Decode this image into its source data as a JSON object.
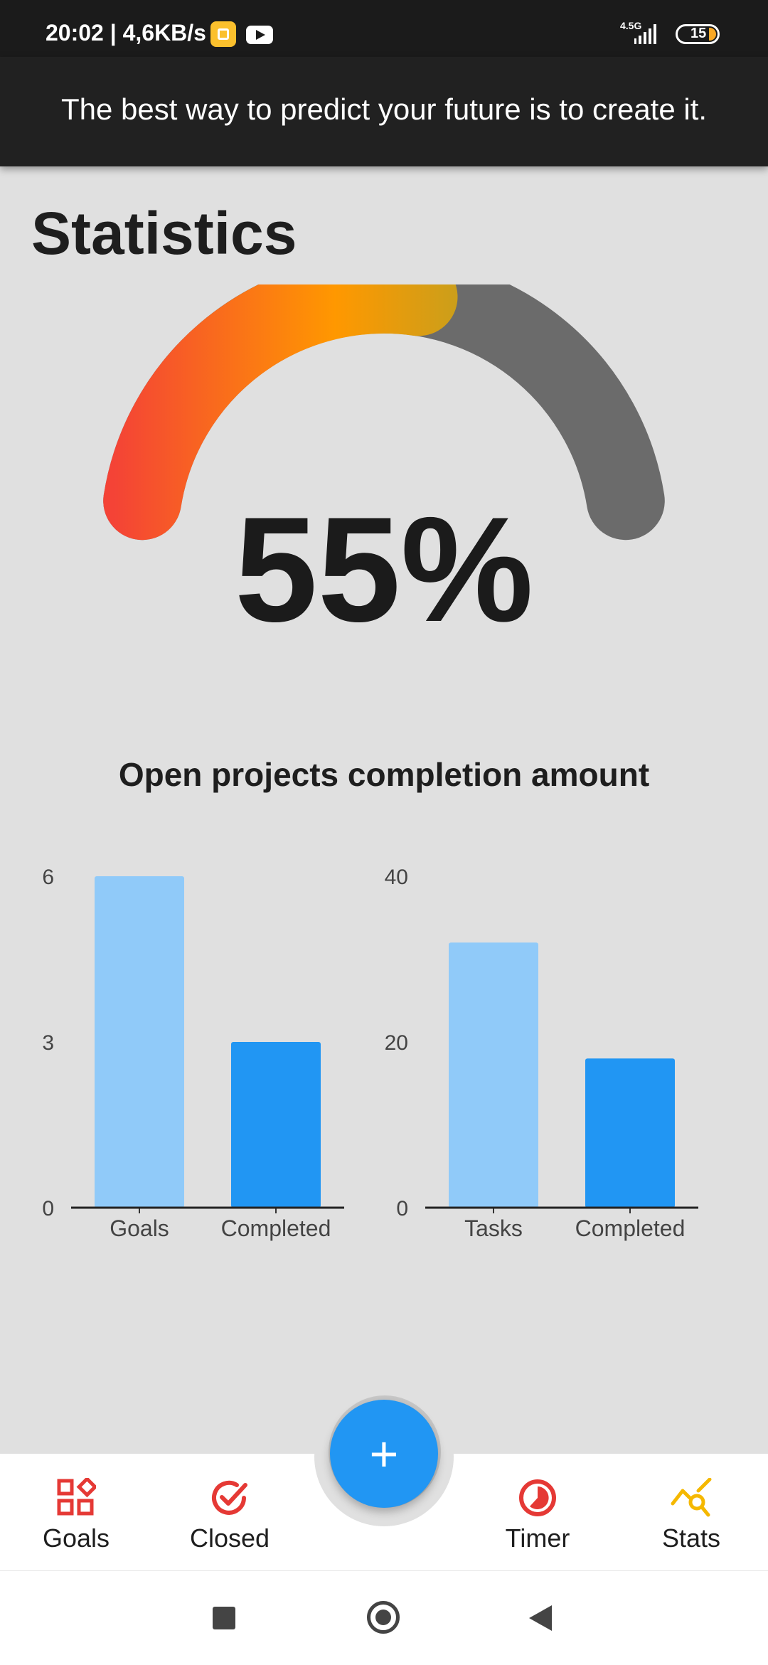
{
  "status_bar": {
    "time_speed": "20:02 | 4,6KB/s",
    "network": "4.5G",
    "battery": "15",
    "icons": [
      "notification-app-icon",
      "youtube-icon",
      "signal-icon",
      "battery-icon"
    ]
  },
  "header": {
    "quote": "The best way to predict your future is to create it."
  },
  "page": {
    "title": "Statistics"
  },
  "gauge": {
    "value_text": "55%",
    "fraction": 0.55,
    "colors": {
      "start": "#f44336",
      "mid": "#ff9800",
      "end": "#c0a020",
      "track": "#6b6b6b"
    }
  },
  "chart_section": {
    "title": "Open projects completion amount"
  },
  "chart_data": [
    {
      "type": "bar",
      "categories": [
        "Goals",
        "Completed"
      ],
      "values": [
        6,
        3
      ],
      "ylim": [
        0,
        6
      ],
      "yticks": [
        0,
        3,
        6
      ],
      "colors": [
        "#90caf9",
        "#2196f3"
      ],
      "grid": false
    },
    {
      "type": "bar",
      "categories": [
        "Tasks",
        "Completed"
      ],
      "values": [
        32,
        18
      ],
      "ylim": [
        0,
        40
      ],
      "yticks": [
        0,
        20,
        40
      ],
      "colors": [
        "#90caf9",
        "#2196f3"
      ],
      "grid": false
    }
  ],
  "bottom_nav": {
    "items": [
      {
        "label": "Goals",
        "icon": "goals-icon",
        "color": "#e53935"
      },
      {
        "label": "Closed",
        "icon": "check-circle-icon",
        "color": "#e53935"
      },
      {
        "label": "Timer",
        "icon": "timer-icon",
        "color": "#e53935"
      },
      {
        "label": "Stats",
        "icon": "stats-icon",
        "color": "#f5b800"
      }
    ],
    "fab": {
      "label": "+",
      "color": "#2196f3"
    }
  },
  "system_nav": {
    "icons": [
      "recent-apps-icon",
      "home-icon",
      "back-icon"
    ]
  }
}
